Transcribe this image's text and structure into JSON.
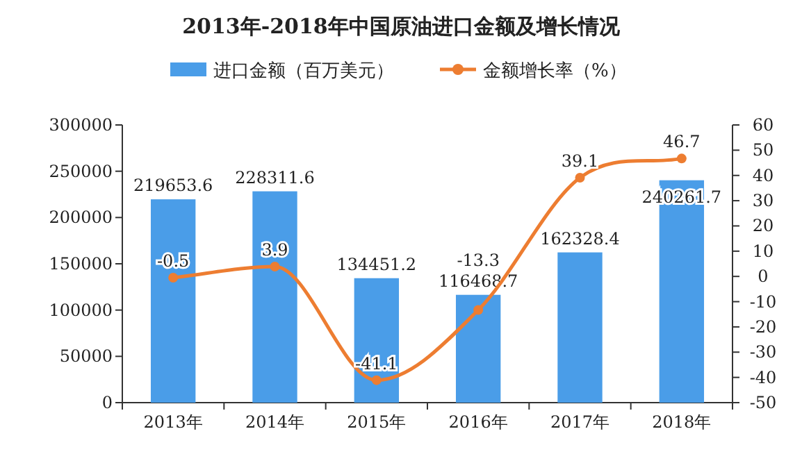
{
  "chart_data": {
    "type": "bar",
    "title": "2013年-2018年中国原油进口金额及增长情况",
    "categories": [
      "2013年",
      "2014年",
      "2015年",
      "2016年",
      "2017年",
      "2018年"
    ],
    "series": [
      {
        "name": "进口金额（百万美元）",
        "color": "#4a9de8",
        "values": [
          219653.6,
          228311.6,
          134451.2,
          116468.7,
          162328.4,
          240261.7
        ]
      },
      {
        "name": "金额增长率（%）",
        "type": "line",
        "axis": "y2",
        "color": "#ed7d31",
        "marker": "circle",
        "values": [
          -0.5,
          3.9,
          -41.1,
          -13.3,
          39.1,
          46.7
        ]
      }
    ],
    "ylim": [
      0,
      300000
    ],
    "yticks": [
      0,
      50000,
      100000,
      150000,
      200000,
      250000,
      300000
    ],
    "y2lim": [
      -50,
      60
    ],
    "y2ticks": [
      -50,
      -40,
      -30,
      -20,
      -10,
      0,
      10,
      20,
      30,
      40,
      50,
      60
    ],
    "data_labels": true,
    "legend": "top",
    "grid": false
  }
}
